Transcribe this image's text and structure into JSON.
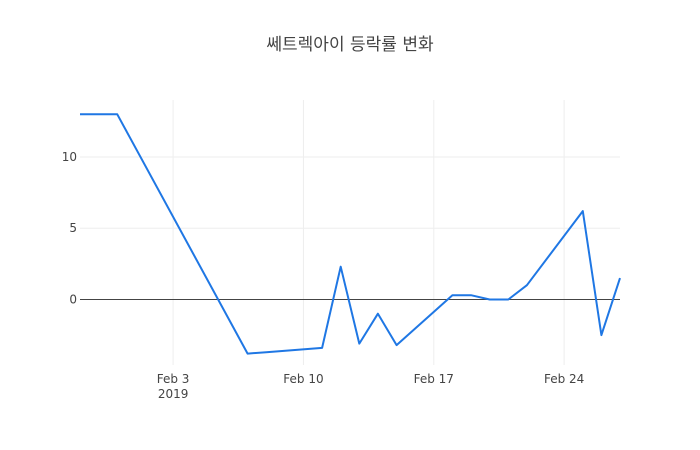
{
  "chart_data": {
    "type": "line",
    "title": "쎄트렉아이 등락률 변화",
    "xlabel": "",
    "ylabel": "",
    "x_start": "2019-01-29",
    "x_end": "2019-02-27",
    "ylim": [
      -4.6,
      14.0
    ],
    "xticks": [
      {
        "date": "2019-02-03",
        "label": "Feb 3",
        "sublabel": "2019"
      },
      {
        "date": "2019-02-10",
        "label": "Feb 10",
        "sublabel": ""
      },
      {
        "date": "2019-02-17",
        "label": "Feb 17",
        "sublabel": ""
      },
      {
        "date": "2019-02-24",
        "label": "Feb 24",
        "sublabel": ""
      }
    ],
    "yticks": [
      {
        "value": 0,
        "label": "0"
      },
      {
        "value": 5,
        "label": "5"
      },
      {
        "value": 10,
        "label": "10"
      }
    ],
    "grid": true,
    "zeroline": true,
    "series": [
      {
        "color": "#1f77e4",
        "points": [
          {
            "x": "2019-01-29",
            "y": 13.0
          },
          {
            "x": "2019-01-31",
            "y": 13.0
          },
          {
            "x": "2019-02-07",
            "y": -3.8
          },
          {
            "x": "2019-02-08",
            "y": -3.7
          },
          {
            "x": "2019-02-11",
            "y": -3.4
          },
          {
            "x": "2019-02-12",
            "y": 2.3
          },
          {
            "x": "2019-02-13",
            "y": -3.1
          },
          {
            "x": "2019-02-14",
            "y": -1.0
          },
          {
            "x": "2019-02-15",
            "y": -3.2
          },
          {
            "x": "2019-02-18",
            "y": 0.3
          },
          {
            "x": "2019-02-19",
            "y": 0.3
          },
          {
            "x": "2019-02-20",
            "y": 0.0
          },
          {
            "x": "2019-02-21",
            "y": 0.0
          },
          {
            "x": "2019-02-22",
            "y": 1.0
          },
          {
            "x": "2019-02-25",
            "y": 6.2
          },
          {
            "x": "2019-02-26",
            "y": -2.5
          },
          {
            "x": "2019-02-27",
            "y": 1.5
          }
        ]
      }
    ]
  }
}
